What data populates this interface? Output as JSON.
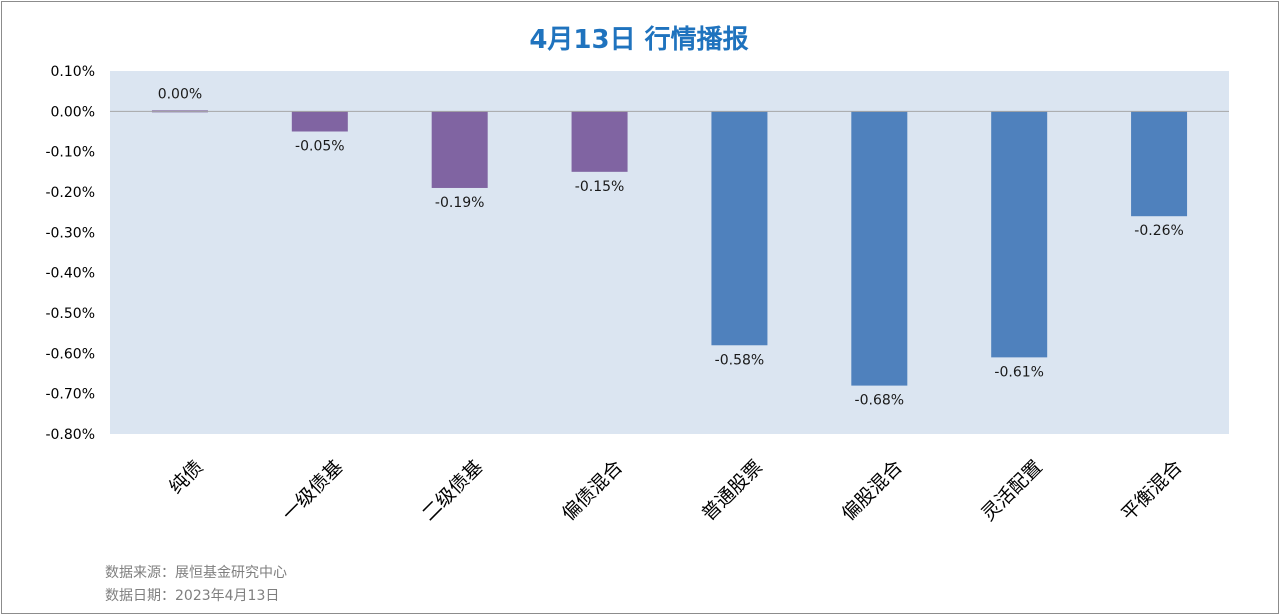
{
  "chart_data": {
    "type": "bar",
    "title": "4月13日  行情播报",
    "categories": [
      "纯债",
      "一级债基",
      "二级债基",
      "偏债混合",
      "普通股票",
      "偏股混合",
      "灵活配置",
      "平衡混合"
    ],
    "values": [
      0.0,
      -0.05,
      -0.19,
      -0.15,
      -0.58,
      -0.68,
      -0.61,
      -0.26
    ],
    "data_labels": [
      "0.00%",
      "-0.05%",
      "-0.19%",
      "-0.15%",
      "-0.58%",
      "-0.68%",
      "-0.61%",
      "-0.26%"
    ],
    "bar_colors": [
      "#8064a2",
      "#8064a2",
      "#8064a2",
      "#8064a2",
      "#4f81bd",
      "#4f81bd",
      "#4f81bd",
      "#4f81bd"
    ],
    "ylim": [
      -0.8,
      0.1
    ],
    "y_ticks": [
      0.1,
      0.0,
      -0.1,
      -0.2,
      -0.3,
      -0.4,
      -0.5,
      -0.6,
      -0.7,
      -0.8
    ],
    "y_tick_labels": [
      "0.10%",
      "0.00%",
      "-0.10%",
      "-0.20%",
      "-0.30%",
      "-0.40%",
      "-0.50%",
      "-0.60%",
      "-0.70%",
      "-0.80%"
    ],
    "xlabel": "",
    "ylabel": "",
    "grid": false,
    "legend": "none",
    "plot_background": "#dbe5f1"
  },
  "footer": {
    "source": "数据来源：展恒基金研究中心",
    "date": "数据日期：2023年4月13日"
  }
}
